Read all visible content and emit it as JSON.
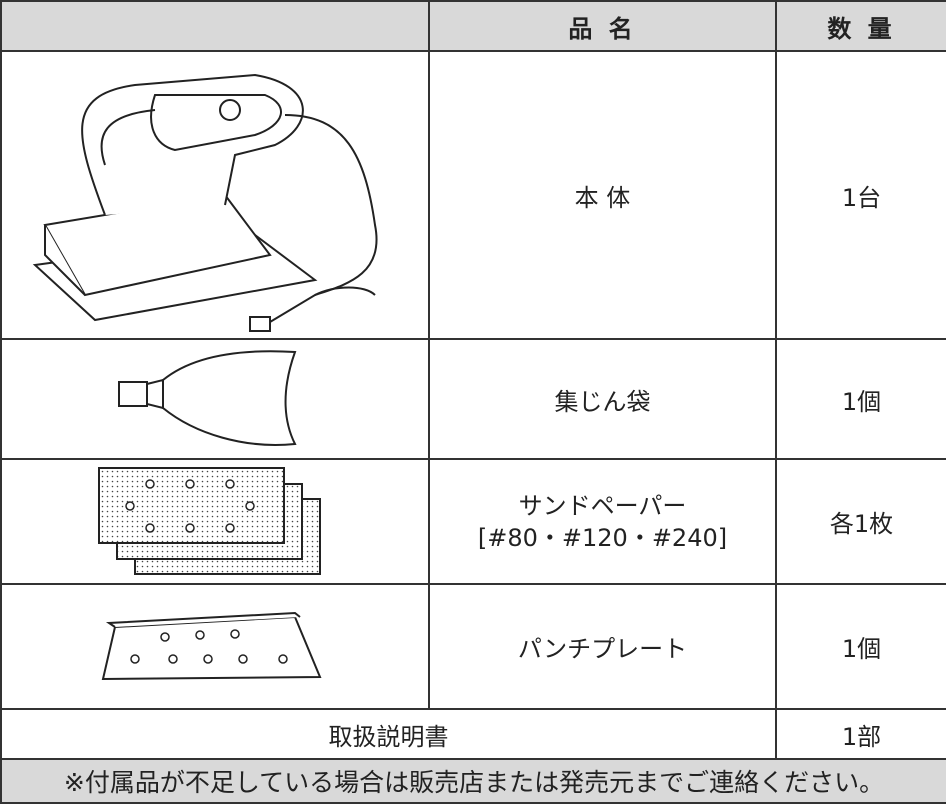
{
  "table": {
    "header": {
      "name": "品 名",
      "quantity": "数 量"
    },
    "rows": [
      {
        "name": "本 体",
        "quantity": "1台"
      },
      {
        "name": "集じん袋",
        "quantity": "1個"
      },
      {
        "name": [
          "サンドペーパー",
          "[#80・#120・#240]"
        ],
        "quantity": "各1枚"
      },
      {
        "name": "パンチプレート",
        "quantity": "1個"
      }
    ],
    "manual": {
      "name": "取扱説明書",
      "quantity": "1部"
    },
    "note": "※付属品が不足している場合は販売店または発売元までご連絡ください。"
  }
}
